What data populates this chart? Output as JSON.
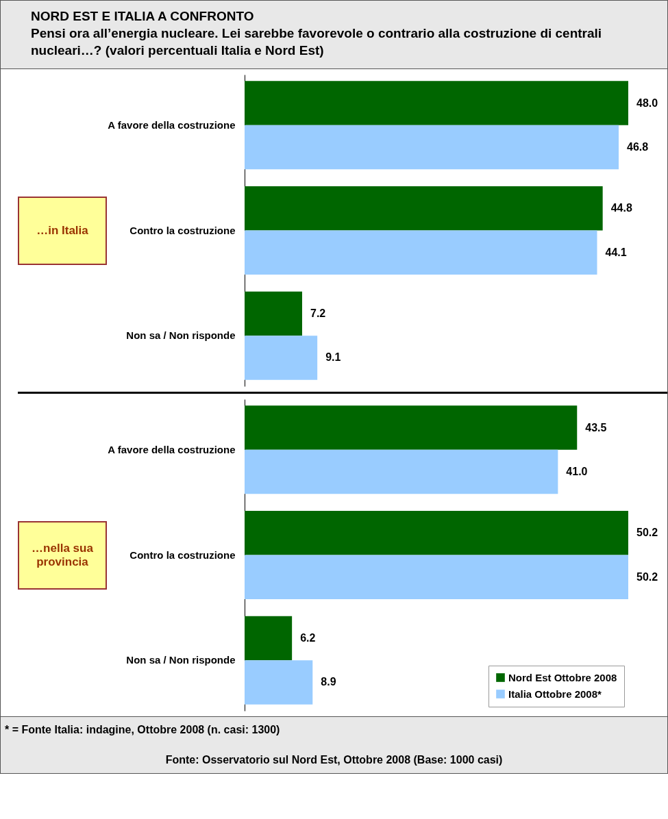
{
  "chart_data": [
    {
      "type": "bar",
      "orientation": "horizontal",
      "title": "NORD EST E ITALIA A CONFRONTO",
      "subtitle": "Pensi ora all’energia nucleare. Lei sarebbe favorevole o contrario alla costruzione di centrali nucleari…? (valori percentuali Italia e Nord Est)",
      "ylabel": "…in Italia",
      "categories": [
        "A favore della costruzione",
        "Contro la costruzione",
        "Non sa / Non risponde"
      ],
      "series": [
        {
          "color": "#006600",
          "values": [
            48.0,
            44.8,
            7.2
          ],
          "value_labels": [
            "48.0",
            "44.8",
            "7.2"
          ]
        },
        {
          "color": "#99ccff",
          "values": [
            46.8,
            44.1,
            9.1
          ],
          "value_labels": [
            "46.8",
            "44.1",
            "9.1"
          ]
        }
      ],
      "legend": false,
      "grid": false
    },
    {
      "type": "bar",
      "orientation": "horizontal",
      "ylabel": "…nella sua provincia",
      "categories": [
        "A favore della costruzione",
        "Contro la costruzione",
        "Non sa / Non risponde"
      ],
      "series": [
        {
          "name": "Nord Est Ottobre 2008",
          "color": "#006600",
          "values": [
            43.5,
            50.2,
            6.2
          ],
          "value_labels": [
            "43.5",
            "50.2",
            "6.2"
          ]
        },
        {
          "name": "Italia Ottobre 2008*",
          "color": "#99ccff",
          "values": [
            41.0,
            50.2,
            8.9
          ],
          "value_labels": [
            "41.0",
            "50.2",
            "8.9"
          ]
        }
      ],
      "legend": "bottom right",
      "grid": false,
      "annotations": [
        "* = Fonte Italia: indagine, Ottobre 2008 (n. casi: 1300)",
        "Fonte: Osservatorio sul Nord Est, Ottobre 2008 (Base: 1000 casi)"
      ]
    }
  ]
}
